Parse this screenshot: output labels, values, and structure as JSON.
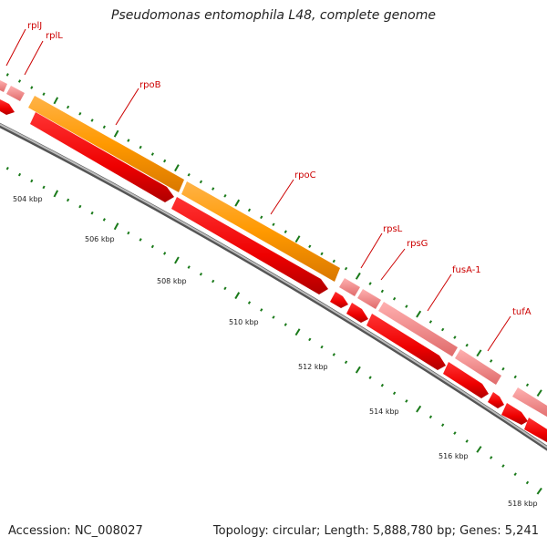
{
  "title": "Pseudomonas entomophila L48, complete genome",
  "accession": "Accession: NC_008027",
  "summary": "Topology: circular; Length: 5,888,780 bp; Genes: 5,241",
  "colors": {
    "backbone": "#8c8c8c",
    "cds": "#ff0000",
    "rna_light": "#f08080",
    "operon_orange": "#ff9900",
    "tick": "#1a7a1a",
    "label": "#cc0000"
  },
  "gene_labels": [
    "rplJ",
    "rplL",
    "rpoB",
    "rpoC",
    "rpsL",
    "rpsG",
    "fusA-1",
    "tufA"
  ],
  "kbp_labels": [
    "504 kbp",
    "506 kbp",
    "508 kbp",
    "510 kbp",
    "512 kbp",
    "514 kbp",
    "516 kbp",
    "518 kbp"
  ]
}
